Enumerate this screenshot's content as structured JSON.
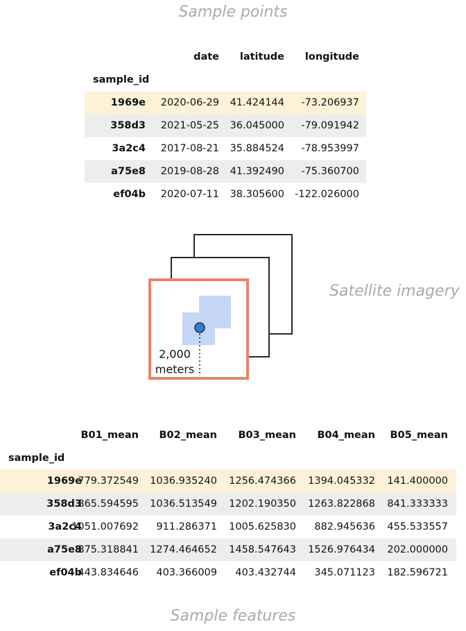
{
  "top_caption": "Sample points",
  "points_table": {
    "index_name": "sample_id",
    "columns": [
      "date",
      "latitude",
      "longitude"
    ],
    "rows": [
      [
        "1969e",
        "2020-06-29",
        "41.424144",
        "-73.206937"
      ],
      [
        "358d3",
        "2021-05-25",
        "36.045000",
        "-79.091942"
      ],
      [
        "3a2c4",
        "2017-08-21",
        "35.884524",
        "-78.953997"
      ],
      [
        "a75e8",
        "2019-08-28",
        "41.392490",
        "-75.360700"
      ],
      [
        "ef04b",
        "2020-07-11",
        "38.305600",
        "-122.026000"
      ]
    ]
  },
  "diagram": {
    "distance": "2,000",
    "unit": "meters",
    "label": "Satellite imagery"
  },
  "features_table": {
    "index_name": "sample_id",
    "columns": [
      "B01_mean",
      "B02_mean",
      "B03_mean",
      "B04_mean",
      "B05_mean"
    ],
    "rows": [
      [
        "1969e",
        "779.372549",
        "1036.935240",
        "1256.474366",
        "1394.045332",
        "141.400000"
      ],
      [
        "358d3",
        "865.594595",
        "1036.513549",
        "1202.190350",
        "1263.822868",
        "841.333333"
      ],
      [
        "3a2c4",
        "1051.007692",
        "911.286371",
        "1005.625830",
        "882.945636",
        "455.533557"
      ],
      [
        "a75e8",
        "875.318841",
        "1274.464652",
        "1458.547643",
        "1526.976434",
        "202.000000"
      ],
      [
        "ef04b",
        "443.834646",
        "403.366009",
        "403.432744",
        "345.071123",
        "182.596721"
      ]
    ]
  },
  "bottom_caption": "Sample features"
}
